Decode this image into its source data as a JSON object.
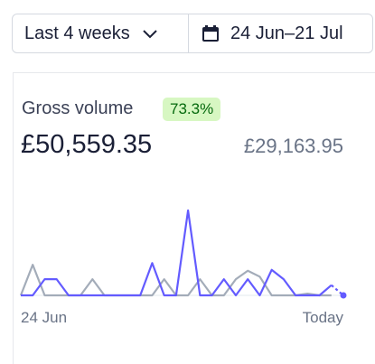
{
  "controls": {
    "range": "Last 4 weeks",
    "dates": "24 Jun–21 Jul"
  },
  "card": {
    "title": "Gross volume",
    "badge": "73.3%",
    "value": "£50,559.35",
    "previous": "£29,163.95"
  },
  "chart": {
    "type": "line",
    "categories": [
      "24 Jun",
      null,
      null,
      null,
      null,
      null,
      null,
      null,
      null,
      null,
      null,
      null,
      null,
      null,
      null,
      null,
      null,
      null,
      null,
      null,
      null,
      null,
      null,
      null,
      null,
      null,
      null,
      "Today"
    ],
    "ylim": [
      0,
      100
    ],
    "series": [
      {
        "color": "#a3acb9",
        "values": [
          0,
          36,
          0,
          0,
          0,
          0,
          19,
          0,
          0,
          0,
          0,
          0,
          19,
          0,
          0,
          19,
          0,
          0,
          19,
          29,
          22,
          0,
          0,
          0,
          2,
          0,
          0,
          null
        ]
      },
      {
        "color": "#635bff",
        "values": [
          0,
          0,
          19,
          19,
          0,
          0,
          0,
          0,
          0,
          0,
          0,
          38,
          0,
          0,
          100,
          0,
          0,
          19,
          0,
          19,
          0,
          30,
          19,
          0,
          0,
          0,
          12,
          0
        ]
      }
    ]
  }
}
